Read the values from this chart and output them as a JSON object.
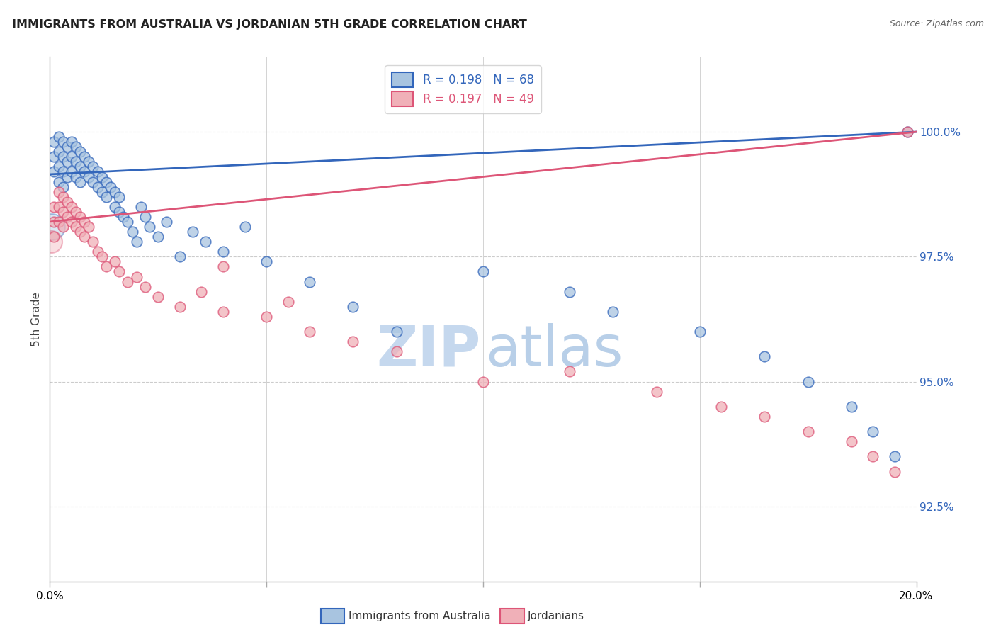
{
  "title": "IMMIGRANTS FROM AUSTRALIA VS JORDANIAN 5TH GRADE CORRELATION CHART",
  "source": "Source: ZipAtlas.com",
  "ylabel": "5th Grade",
  "y_ticks": [
    92.5,
    95.0,
    97.5,
    100.0
  ],
  "y_labels": [
    "92.5%",
    "95.0%",
    "97.5%",
    "100.0%"
  ],
  "xlim": [
    0.0,
    0.2
  ],
  "ylim": [
    91.0,
    101.5
  ],
  "blue_R": 0.198,
  "blue_N": 68,
  "pink_R": 0.197,
  "pink_N": 49,
  "blue_fill": "#a8c4e0",
  "pink_fill": "#f0b0b8",
  "line_blue": "#3366bb",
  "line_pink": "#dd5577",
  "legend_label_blue": "Immigrants from Australia",
  "legend_label_pink": "Jordanians",
  "blue_line_y0": 99.15,
  "blue_line_y1": 100.0,
  "pink_line_y0": 98.2,
  "pink_line_y1": 100.0,
  "blue_x": [
    0.001,
    0.001,
    0.001,
    0.002,
    0.002,
    0.002,
    0.002,
    0.003,
    0.003,
    0.003,
    0.003,
    0.004,
    0.004,
    0.004,
    0.005,
    0.005,
    0.005,
    0.006,
    0.006,
    0.006,
    0.007,
    0.007,
    0.007,
    0.008,
    0.008,
    0.009,
    0.009,
    0.01,
    0.01,
    0.011,
    0.011,
    0.012,
    0.012,
    0.013,
    0.013,
    0.014,
    0.015,
    0.015,
    0.016,
    0.016,
    0.017,
    0.018,
    0.019,
    0.02,
    0.021,
    0.022,
    0.023,
    0.025,
    0.027,
    0.03,
    0.033,
    0.036,
    0.04,
    0.045,
    0.05,
    0.06,
    0.07,
    0.08,
    0.1,
    0.12,
    0.13,
    0.15,
    0.165,
    0.175,
    0.185,
    0.19,
    0.195,
    0.198
  ],
  "blue_y": [
    99.8,
    99.5,
    99.2,
    99.9,
    99.6,
    99.3,
    99.0,
    99.8,
    99.5,
    99.2,
    98.9,
    99.7,
    99.4,
    99.1,
    99.8,
    99.5,
    99.2,
    99.7,
    99.4,
    99.1,
    99.6,
    99.3,
    99.0,
    99.5,
    99.2,
    99.4,
    99.1,
    99.3,
    99.0,
    99.2,
    98.9,
    99.1,
    98.8,
    99.0,
    98.7,
    98.9,
    98.8,
    98.5,
    98.7,
    98.4,
    98.3,
    98.2,
    98.0,
    97.8,
    98.5,
    98.3,
    98.1,
    97.9,
    98.2,
    97.5,
    98.0,
    97.8,
    97.6,
    98.1,
    97.4,
    97.0,
    96.5,
    96.0,
    97.2,
    96.8,
    96.4,
    96.0,
    95.5,
    95.0,
    94.5,
    94.0,
    93.5,
    100.0
  ],
  "pink_x": [
    0.001,
    0.001,
    0.001,
    0.002,
    0.002,
    0.002,
    0.003,
    0.003,
    0.003,
    0.004,
    0.004,
    0.005,
    0.005,
    0.006,
    0.006,
    0.007,
    0.007,
    0.008,
    0.008,
    0.009,
    0.01,
    0.011,
    0.012,
    0.013,
    0.015,
    0.016,
    0.018,
    0.02,
    0.022,
    0.025,
    0.03,
    0.035,
    0.04,
    0.05,
    0.06,
    0.07,
    0.08,
    0.1,
    0.12,
    0.14,
    0.155,
    0.165,
    0.175,
    0.185,
    0.19,
    0.195,
    0.198,
    0.04,
    0.055
  ],
  "pink_y": [
    98.5,
    98.2,
    97.9,
    98.8,
    98.5,
    98.2,
    98.7,
    98.4,
    98.1,
    98.6,
    98.3,
    98.5,
    98.2,
    98.4,
    98.1,
    98.3,
    98.0,
    98.2,
    97.9,
    98.1,
    97.8,
    97.6,
    97.5,
    97.3,
    97.4,
    97.2,
    97.0,
    97.1,
    96.9,
    96.7,
    96.5,
    96.8,
    96.4,
    96.3,
    96.0,
    95.8,
    95.6,
    95.0,
    95.2,
    94.8,
    94.5,
    94.3,
    94.0,
    93.8,
    93.5,
    93.2,
    100.0,
    97.3,
    96.6
  ]
}
